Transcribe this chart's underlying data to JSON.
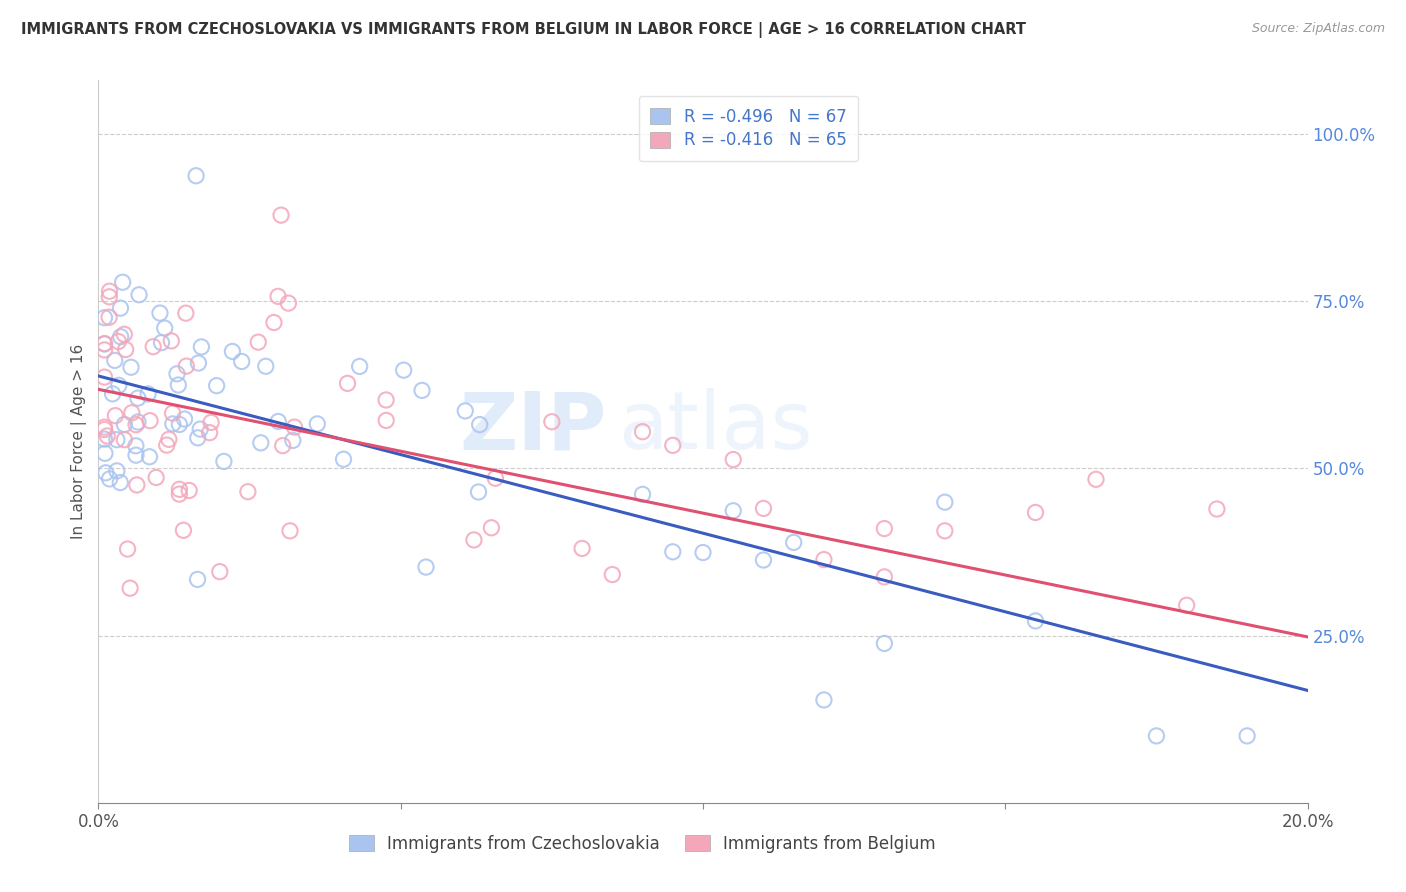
{
  "title": "IMMIGRANTS FROM CZECHOSLOVAKIA VS IMMIGRANTS FROM BELGIUM IN LABOR FORCE | AGE > 16 CORRELATION CHART",
  "source": "Source: ZipAtlas.com",
  "ylabel": "In Labor Force | Age > 16",
  "xmin": 0.0,
  "xmax": 0.2,
  "ymin": 0.0,
  "ymax": 1.08,
  "x_ticks": [
    0.0,
    0.05,
    0.1,
    0.15,
    0.2
  ],
  "x_tick_labels": [
    "0.0%",
    "",
    "",
    "",
    "20.0%"
  ],
  "y_ticks_right": [
    1.0,
    0.75,
    0.5,
    0.25
  ],
  "y_tick_labels_right": [
    "100.0%",
    "75.0%",
    "50.0%",
    "25.0%"
  ],
  "czech_color": "#aac4f0",
  "belgium_color": "#f4a7b9",
  "czech_line_color": "#3a5bbf",
  "belgium_line_color": "#e05070",
  "czech_R": -0.496,
  "czech_N": 67,
  "belgium_R": -0.416,
  "belgium_N": 65,
  "legend_label_czech": "R = -0.496   N = 67",
  "legend_label_belgium": "R = -0.416   N = 65",
  "bottom_legend_czech": "Immigrants from Czechoslovakia",
  "bottom_legend_belgium": "Immigrants from Belgium",
  "watermark_zip": "ZIP",
  "watermark_atlas": "atlas",
  "czech_intercept": 0.638,
  "czech_slope": -2.35,
  "belgium_intercept": 0.618,
  "belgium_slope": -1.85,
  "grid_color": "#cccccc",
  "background": "#ffffff"
}
